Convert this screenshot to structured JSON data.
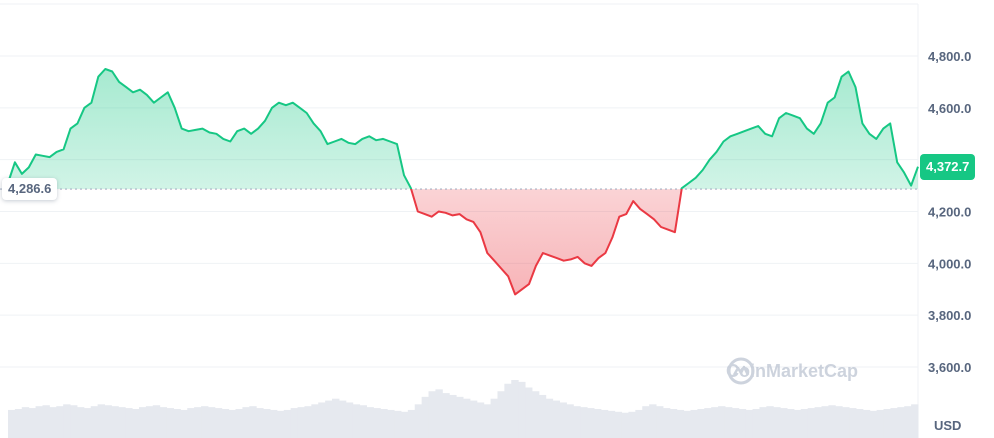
{
  "chart_data": {
    "type": "area",
    "ylim": [
      3500,
      5000
    ],
    "yticks": [
      3600,
      3800,
      4000,
      4200,
      4400,
      4600,
      4800
    ],
    "ytick_labels": [
      "3,600.0",
      "3,800.0",
      "4,000.0",
      "4,200.0",
      "",
      "4,600.0",
      "4,800.0"
    ],
    "baseline_value": 4286.6,
    "baseline_label": "4,286.6",
    "current_value": 4372.7,
    "current_label": "4,372.7",
    "currency_label": "USD",
    "series": [
      {
        "values": [
          4310,
          4390,
          4345,
          4370,
          4420,
          4415,
          4410,
          4430,
          4440,
          4520,
          4540,
          4600,
          4620,
          4720,
          4750,
          4740,
          4700,
          4680,
          4660,
          4670,
          4650,
          4620,
          4640,
          4660,
          4600,
          4520,
          4510,
          4515,
          4520,
          4505,
          4500,
          4480,
          4470,
          4510,
          4520,
          4500,
          4520,
          4550,
          4600,
          4620,
          4610,
          4620,
          4600,
          4580,
          4540,
          4510,
          4460,
          4470,
          4480,
          4465,
          4460,
          4480,
          4490,
          4475,
          4480,
          4470,
          4460,
          4340,
          4290,
          4200,
          4190,
          4180,
          4200,
          4195,
          4185,
          4190,
          4170,
          4160,
          4120,
          4040,
          4010,
          3980,
          3950,
          3880,
          3900,
          3920,
          3990,
          4040,
          4030,
          4020,
          4010,
          4015,
          4025,
          4000,
          3990,
          4020,
          4040,
          4100,
          4180,
          4190,
          4240,
          4210,
          4190,
          4170,
          4140,
          4130,
          4120,
          4290,
          4310,
          4330,
          4360,
          4400,
          4430,
          4470,
          4490,
          4500,
          4510,
          4520,
          4530,
          4500,
          4490,
          4560,
          4580,
          4570,
          4560,
          4520,
          4500,
          4540,
          4620,
          4640,
          4720,
          4740,
          4680,
          4540,
          4500,
          4480,
          4520,
          4540,
          4390,
          4350,
          4300,
          4372.7
        ]
      }
    ],
    "volume": [
      30,
      31,
      33,
      32,
      34,
      35,
      33,
      34,
      36,
      35,
      33,
      32,
      34,
      36,
      35,
      34,
      33,
      32,
      31,
      33,
      34,
      35,
      33,
      32,
      31,
      30,
      32,
      33,
      34,
      33,
      32,
      31,
      30,
      31,
      33,
      34,
      32,
      31,
      30,
      29,
      30,
      32,
      33,
      34,
      36,
      38,
      40,
      42,
      40,
      38,
      36,
      35,
      33,
      32,
      31,
      30,
      29,
      28,
      30,
      36,
      44,
      50,
      52,
      48,
      46,
      44,
      42,
      40,
      38,
      36,
      42,
      50,
      58,
      62,
      60,
      54,
      50,
      46,
      42,
      40,
      38,
      36,
      34,
      33,
      32,
      31,
      30,
      29,
      28,
      27,
      28,
      30,
      34,
      36,
      34,
      32,
      31,
      30,
      29,
      30,
      31,
      32,
      33,
      34,
      33,
      32,
      31,
      30,
      31,
      33,
      34,
      33,
      32,
      31,
      30,
      31,
      32,
      33,
      34,
      35,
      34,
      33,
      32,
      31,
      30,
      29,
      30,
      31,
      32,
      33,
      34,
      36
    ]
  },
  "watermark": {
    "text": "CoinMarketCap",
    "icon": "coinmarketcap-logo-icon"
  },
  "colors": {
    "up": "#16c784",
    "down": "#ea3943",
    "grid": "#eff2f5",
    "baseline": "#a6b0c3",
    "text": "#58667e"
  }
}
